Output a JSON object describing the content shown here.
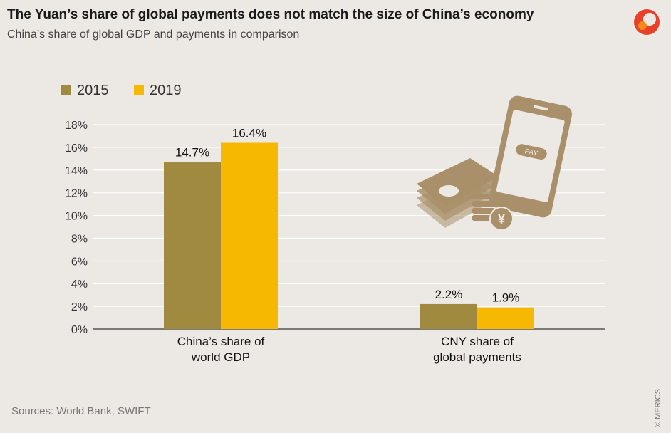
{
  "header": {
    "title": "The Yuan’s share of global payments does not match the size of China’s economy",
    "subtitle": "China’s share of global GDP and payments in comparison"
  },
  "footer": {
    "source": "Sources: World Bank, SWIFT",
    "copyright": "© MERICS"
  },
  "icons": [
    "merics-logo-icon",
    "payment-illustration-icon",
    "yen-coin-icon"
  ],
  "illustration": {
    "pay_label": "PAY",
    "yen_symbol": "¥"
  },
  "colors": {
    "series_2015": "#a08a40",
    "series_2019": "#f6b800",
    "background": "#ece9e4",
    "illustration": "#a9906a"
  },
  "chart_data": {
    "type": "bar",
    "categories": [
      [
        "China’s share of",
        "world GDP"
      ],
      [
        "CNY share of",
        "global payments"
      ]
    ],
    "series": [
      {
        "name": "2015",
        "values": [
          14.7,
          2.2
        ],
        "labels": [
          "14.7%",
          "2.2%"
        ]
      },
      {
        "name": "2019",
        "values": [
          16.4,
          1.9
        ],
        "labels": [
          "16.4%",
          "1.9%"
        ]
      }
    ],
    "yticks": [
      "0%",
      "2%",
      "4%",
      "6%",
      "8%",
      "10%",
      "12%",
      "14%",
      "16%",
      "18%"
    ],
    "ylim": [
      0,
      18
    ],
    "grid": true,
    "legend": "top-left"
  }
}
